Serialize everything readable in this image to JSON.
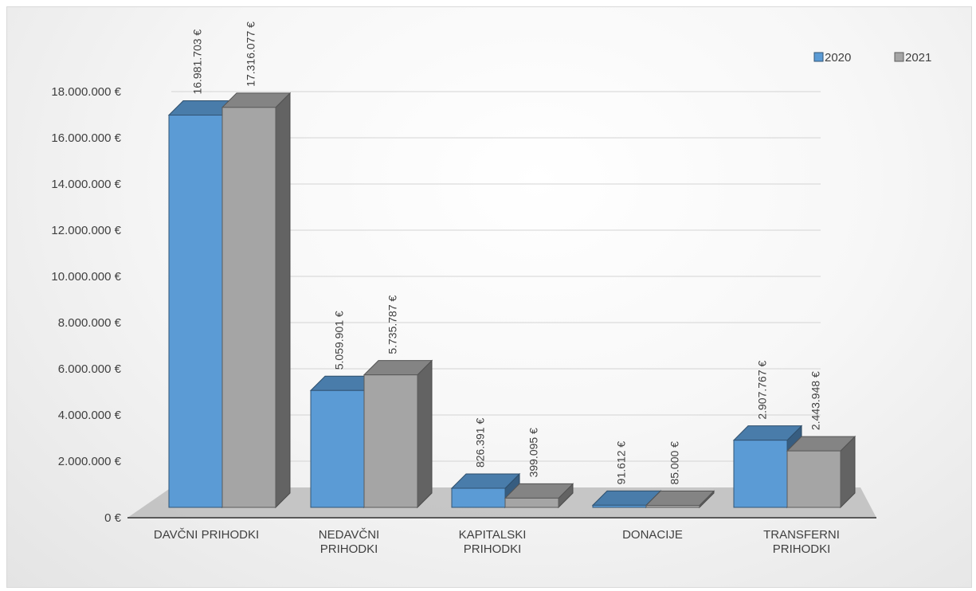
{
  "chart_data": {
    "type": "bar",
    "categories": [
      [
        "DAVČNI PRIHODKI"
      ],
      [
        "NEDAVČNI",
        "PRIHODKI"
      ],
      [
        "KAPITALSKI",
        "PRIHODKI"
      ],
      [
        "DONACIJE"
      ],
      [
        "TRANSFERNI",
        "PRIHODKI"
      ]
    ],
    "series": [
      {
        "name": "2020",
        "color": "#5b9bd5",
        "values": [
          16981703,
          5059901,
          826391,
          91612,
          2907767
        ],
        "labels": [
          "16.981.703 €",
          "5.059.901 €",
          "826.391 €",
          "91.612 €",
          "2.907.767 €"
        ]
      },
      {
        "name": "2021",
        "color": "#a5a5a5",
        "values": [
          17316077,
          5735787,
          399095,
          85000,
          2443948
        ],
        "labels": [
          "17.316.077 €",
          "5.735.787 €",
          "399.095 €",
          "85.000 €",
          "2.443.948 €"
        ]
      }
    ],
    "yticks": [
      "0 €",
      "2.000.000 €",
      "4.000.000 €",
      "6.000.000 €",
      "8.000.000 €",
      "10.000.000 €",
      "12.000.000 €",
      "14.000.000 €",
      "16.000.000 €",
      "18.000.000 €"
    ],
    "ylim": [
      0,
      18000000
    ],
    "grid": true,
    "legend": "top-right",
    "style": "3d-clustered-column"
  }
}
